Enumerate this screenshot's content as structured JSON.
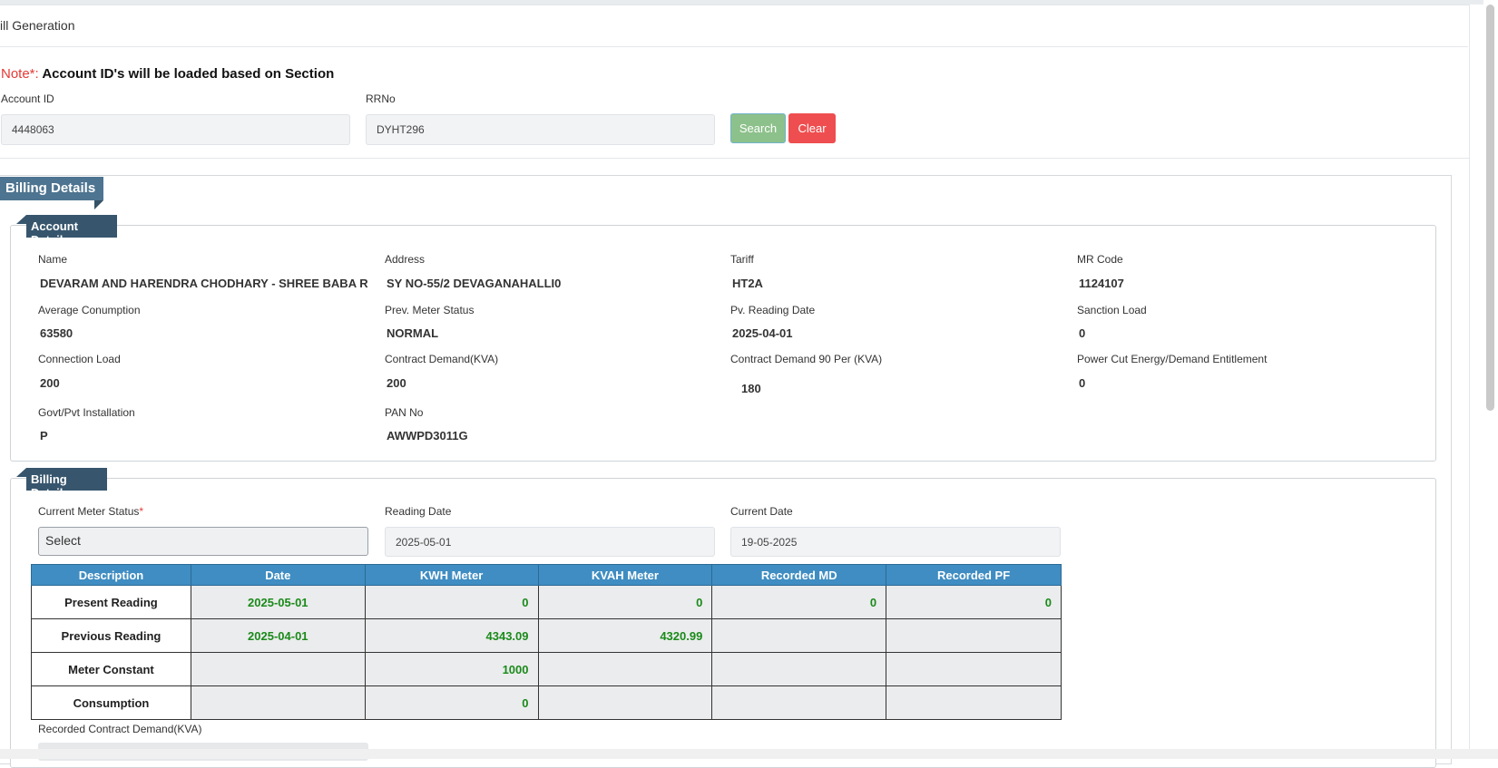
{
  "header": {
    "title": "ill Generation"
  },
  "note": {
    "prefix": "Note*:",
    "text": " Account ID's will be loaded based on Section"
  },
  "search": {
    "account_id_label": "Account ID",
    "account_id_value": "4448063",
    "rrno_label": "RRNo",
    "rrno_value": "DYHT296",
    "search_label": "Search",
    "clear_label": "Clear",
    "search_color": "#8dc18b",
    "clear_color": "#ef4e50"
  },
  "billing_section": {
    "title": "Billing Details"
  },
  "account_details": {
    "title": "Account Details",
    "fields": [
      {
        "label": "Name",
        "value": "DEVARAM AND HARENDRA CHODHARY - SHREE BABA R"
      },
      {
        "label": "Address",
        "value": "SY NO-55/2 DEVAGANAHALLI0"
      },
      {
        "label": "Tariff",
        "value": "HT2A"
      },
      {
        "label": "MR Code",
        "value": "1124107"
      },
      {
        "label": "Average Conumption",
        "value": "63580"
      },
      {
        "label": "Prev. Meter Status",
        "value": "NORMAL"
      },
      {
        "label": "Pv. Reading Date",
        "value": "2025-04-01"
      },
      {
        "label": "Sanction Load",
        "value": "0"
      },
      {
        "label": "Connection Load",
        "value": "200"
      },
      {
        "label": "Contract Demand(KVA)",
        "value": "200"
      },
      {
        "label": "Contract Demand 90 Per (KVA)",
        "value": "180"
      },
      {
        "label": "Power Cut Energy/Demand Entitlement",
        "value": "0"
      },
      {
        "label": "Govt/Pvt Installation",
        "value": "P"
      },
      {
        "label": "PAN No",
        "value": "AWWPD3011G"
      }
    ]
  },
  "billing_details": {
    "title": "Billing Details",
    "current_meter_status_label": "Current Meter Status",
    "required_mark": "*",
    "current_meter_status_value": "Select",
    "reading_date_label": "Reading Date",
    "reading_date_value": "2025-05-01",
    "current_date_label": "Current Date",
    "current_date_value": "19-05-2025",
    "recorded_contract_demand_label": "Recorded Contract Demand(KVA)"
  },
  "table": {
    "headers": [
      "Description",
      "Date",
      "KWH Meter",
      "KVAH Meter",
      "Recorded MD",
      "Recorded PF"
    ],
    "rows": [
      {
        "description": "Present Reading",
        "date": "2025-05-01",
        "kwh": "0",
        "kvah": "0",
        "md": "0",
        "pf": "0"
      },
      {
        "description": "Previous Reading",
        "date": "2025-04-01",
        "kwh": "4343.09",
        "kvah": "4320.99",
        "md": "",
        "pf": ""
      },
      {
        "description": "Meter Constant",
        "date": "",
        "kwh": "1000",
        "kvah": "",
        "md": "",
        "pf": ""
      },
      {
        "description": "Consumption",
        "date": "",
        "kwh": "0",
        "kvah": "",
        "md": "",
        "pf": ""
      }
    ]
  }
}
